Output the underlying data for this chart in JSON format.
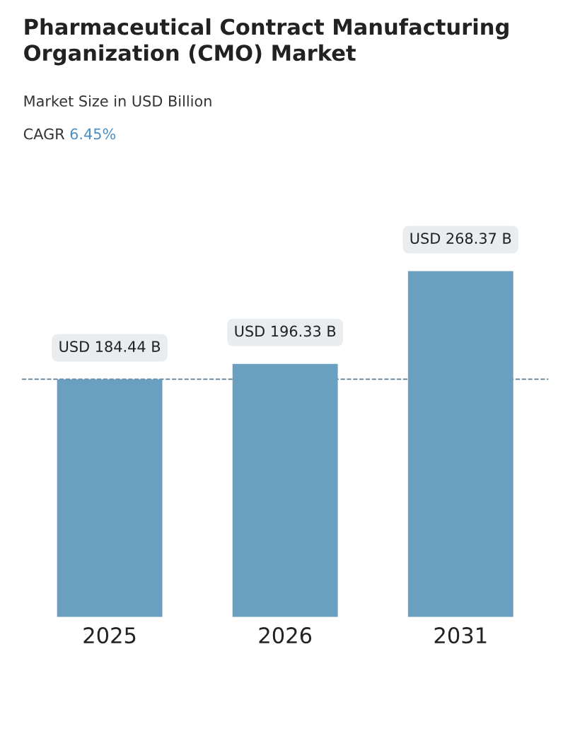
{
  "chart_data": {
    "type": "bar",
    "title": "Pharmaceutical Contract Manufacturing Organization (CMO) Market",
    "subtitle": "Market Size in USD Billion",
    "annotations": [
      "CAGR 6.45%"
    ],
    "categories": [
      "2025",
      "2026",
      "2031"
    ],
    "values": [
      184.44,
      196.33,
      268.37
    ],
    "value_labels": [
      "USD 184.44 B",
      "USD 196.33 B",
      "USD 268.37 B"
    ],
    "color": "#6a9fc0",
    "tick_labels": "x",
    "grid": false,
    "legend": false,
    "ref_lines": [
      {
        "axis": "y",
        "value": 184.44,
        "color": "#5d7f96",
        "line_style": "dashed"
      }
    ]
  }
}
